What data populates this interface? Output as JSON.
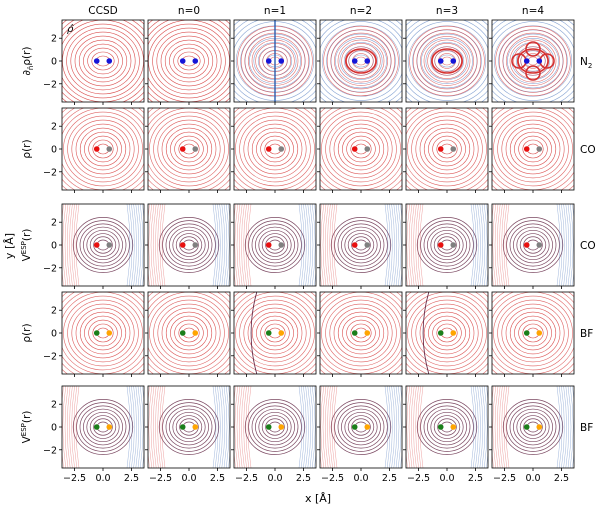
{
  "chart_data": {
    "type": "contour-grid",
    "columns": [
      "CCSD",
      "n=0",
      "n=1",
      "n=2",
      "n=3",
      "n=4"
    ],
    "rows": [
      {
        "ylabel_base": "∂",
        "ylabel_sub": "n̂",
        "ylabel_rest": "ρ(r)",
        "molecule": "N",
        "molecule_sub": "2",
        "atom_colors": [
          "#1515d8",
          "#1515d8"
        ],
        "kind": "deriv"
      },
      {
        "ylabel_base": "ρ(r)",
        "ylabel_sub": "",
        "ylabel_rest": "",
        "molecule": "CO",
        "molecule_sub": "",
        "atom_colors": [
          "#e81010",
          "#808080"
        ],
        "kind": "density"
      },
      {
        "ylabel_base": "V",
        "ylabel_sup": "ESP",
        "ylabel_rest": "(r)",
        "molecule": "CO",
        "molecule_sub": "",
        "atom_colors": [
          "#e81010",
          "#808080"
        ],
        "kind": "esp"
      },
      {
        "ylabel_base": "ρ(r)",
        "ylabel_sub": "",
        "ylabel_rest": "",
        "molecule": "BF",
        "molecule_sub": "",
        "atom_colors": [
          "#1a7f1a",
          "#ffa500"
        ],
        "kind": "density"
      },
      {
        "ylabel_base": "V",
        "ylabel_sup": "ESP",
        "ylabel_rest": "(r)",
        "molecule": "BF",
        "molecule_sub": "",
        "atom_colors": [
          "#1a7f1a",
          "#ffa500"
        ],
        "kind": "esp"
      }
    ],
    "panel_annotation": "ρ̂",
    "xlabel": "x [Å]",
    "ylabel": "y [Å]",
    "xticks": [
      -2.5,
      0.0,
      2.5
    ],
    "xtick_labels": [
      "−2.5",
      "0.0",
      "2.5"
    ],
    "yticks": [
      2,
      0,
      -2
    ],
    "ytick_labels": [
      "2",
      "0",
      "−2"
    ],
    "xlim": [
      -3.6,
      3.6
    ],
    "ylim": [
      -3.6,
      3.6
    ],
    "atom_positions_x": [
      -0.55,
      0.55
    ],
    "contour_colors": {
      "positive": "#d43030",
      "negative": "#2a5db0",
      "dark": "#5a1a3a"
    }
  }
}
